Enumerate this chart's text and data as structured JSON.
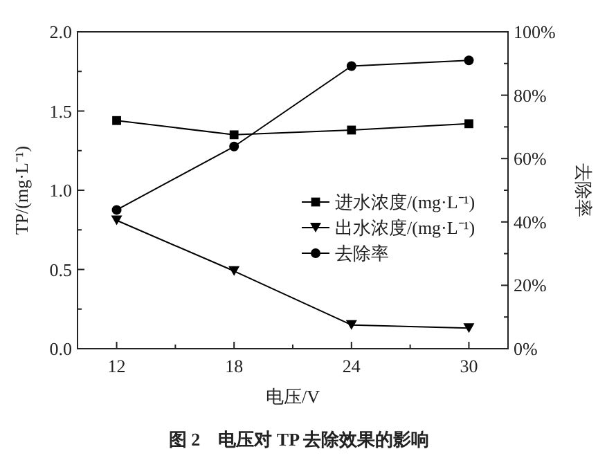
{
  "chart_data": {
    "type": "line",
    "title": "图 2　电压对 TP 去除效果的影响",
    "xlabel": "电压/V",
    "ylabel": "TP/(mg·L⁻¹)",
    "y2label": "去除率",
    "x": [
      12,
      18,
      24,
      30
    ],
    "series": [
      {
        "name": "进水浓度/(mg·L⁻¹)",
        "color": "#000000",
        "marker": "square",
        "values": [
          1.44,
          1.35,
          1.38,
          1.42
        ]
      },
      {
        "name": "出水浓度/(mg·L⁻¹)",
        "color": "#000000",
        "marker": "triangle",
        "values": [
          0.81,
          0.49,
          0.15,
          0.13
        ]
      },
      {
        "name": "去除率",
        "color": "#000000",
        "marker": "circle",
        "axis": "y2",
        "values": [
          43.8,
          63.8,
          89.2,
          91.0
        ]
      }
    ],
    "xlim": [
      10,
      32
    ],
    "xticks": [
      12,
      {
        "value": 15,
        "label": null
      },
      18,
      {
        "value": 21,
        "label": null
      },
      24,
      {
        "value": 27,
        "label": null
      },
      30
    ],
    "ylim": [
      0,
      2
    ],
    "yticks": [
      {
        "value": 0,
        "label": "0.0"
      },
      {
        "value": 0.25,
        "label": null
      },
      {
        "value": 0.5,
        "label": "0.5"
      },
      {
        "value": 0.75,
        "label": null
      },
      {
        "value": 1,
        "label": "1.0"
      },
      {
        "value": 1.25,
        "label": null
      },
      {
        "value": 1.5,
        "label": "1.5"
      },
      {
        "value": 1.75,
        "label": null
      },
      {
        "value": 2,
        "label": "2.0"
      }
    ],
    "y2lim": [
      0,
      100
    ],
    "y2ticks": [
      {
        "value": 0,
        "label": "0%"
      },
      {
        "value": 10,
        "label": null
      },
      {
        "value": 20,
        "label": "20%"
      },
      {
        "value": 30,
        "label": null
      },
      {
        "value": 40,
        "label": "40%"
      },
      {
        "value": 50,
        "label": null
      },
      {
        "value": 60,
        "label": "60%"
      },
      {
        "value": 70,
        "label": null
      },
      {
        "value": 80,
        "label": "80%"
      },
      {
        "value": 90,
        "label": null
      },
      {
        "value": 100,
        "label": "100%"
      }
    ],
    "legend": "right",
    "grid": false,
    "line_style": "solid"
  }
}
